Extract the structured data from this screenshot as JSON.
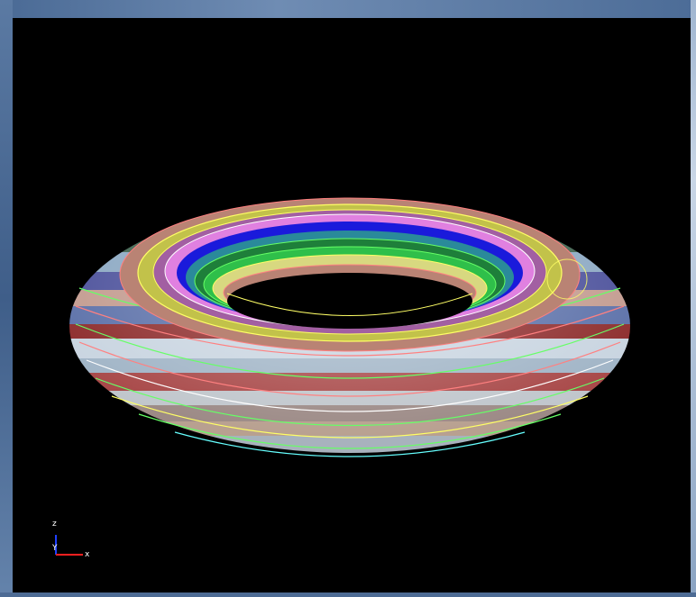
{
  "viewport": {
    "background": "#000000",
    "object": "torus",
    "band_colors": [
      "#7ea0b8",
      "#b8c2cf",
      "#8c4a4a",
      "#d0d6dd",
      "#4a5f9a",
      "#3e3a8c",
      "#b98374",
      "#c2c24a",
      "#a25fa2",
      "#1a1adb",
      "#1e7f3a",
      "#2fbf4a",
      "#d8d880",
      "#e080e0"
    ],
    "line_colors": [
      "#ffff66",
      "#66ff66",
      "#ff8080",
      "#ffffff",
      "#66ffff"
    ]
  },
  "axis_triad": {
    "z_label": "z",
    "y_label": "Y",
    "x_label": "x",
    "z_color": "#2040ff",
    "x_color": "#ff2020"
  }
}
